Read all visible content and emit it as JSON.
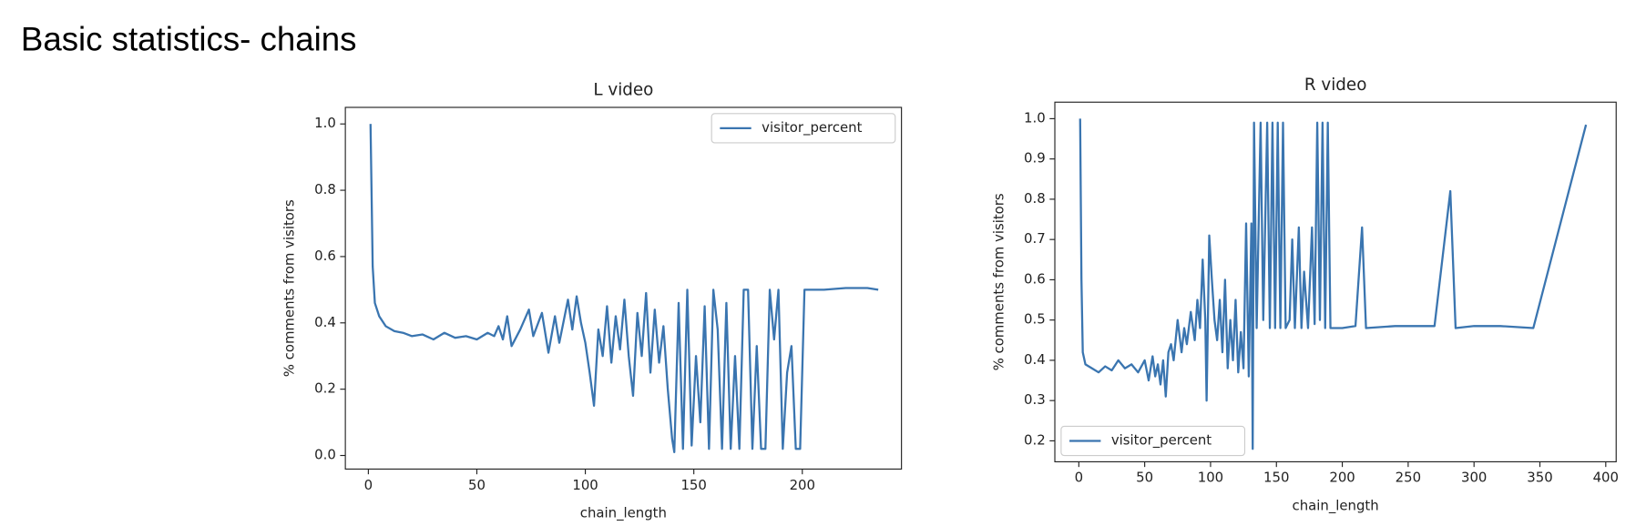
{
  "page_title": "Basic statistics- chains",
  "chart_data": [
    {
      "type": "line",
      "title": "L video",
      "xlabel": "chain_length",
      "ylabel": "% comments from visitors",
      "x": [
        1,
        2,
        3,
        5,
        8,
        12,
        16,
        20,
        25,
        30,
        35,
        40,
        45,
        50,
        55,
        58,
        60,
        62,
        64,
        66,
        70,
        74,
        76,
        80,
        83,
        86,
        88,
        92,
        94,
        96,
        98,
        100,
        102,
        104,
        106,
        108,
        110,
        112,
        114,
        116,
        118,
        120,
        122,
        124,
        126,
        128,
        130,
        132,
        134,
        136,
        138,
        140,
        141,
        143,
        145,
        147,
        149,
        151,
        153,
        155,
        157,
        159,
        161,
        163,
        165,
        167,
        169,
        171,
        173,
        175,
        177,
        179,
        181,
        183,
        185,
        187,
        189,
        191,
        193,
        195,
        197,
        199,
        201,
        205,
        210,
        220,
        230,
        235
      ],
      "series": [
        {
          "name": "visitor_percent",
          "color": "#3a75b0",
          "values": [
            1.0,
            0.57,
            0.46,
            0.42,
            0.39,
            0.375,
            0.37,
            0.36,
            0.365,
            0.35,
            0.37,
            0.355,
            0.36,
            0.35,
            0.37,
            0.36,
            0.39,
            0.35,
            0.42,
            0.33,
            0.38,
            0.44,
            0.36,
            0.43,
            0.31,
            0.42,
            0.34,
            0.47,
            0.38,
            0.48,
            0.4,
            0.34,
            0.25,
            0.15,
            0.38,
            0.3,
            0.45,
            0.28,
            0.42,
            0.32,
            0.47,
            0.3,
            0.18,
            0.43,
            0.3,
            0.49,
            0.25,
            0.44,
            0.28,
            0.39,
            0.2,
            0.05,
            0.01,
            0.46,
            0.02,
            0.5,
            0.03,
            0.3,
            0.1,
            0.45,
            0.02,
            0.5,
            0.38,
            0.02,
            0.46,
            0.02,
            0.3,
            0.02,
            0.5,
            0.5,
            0.02,
            0.33,
            0.02,
            0.02,
            0.5,
            0.35,
            0.5,
            0.02,
            0.25,
            0.33,
            0.02,
            0.02,
            0.5,
            0.5,
            0.5,
            0.505,
            0.505,
            0.5
          ]
        }
      ],
      "xlim": [
        -10.6,
        245.7
      ],
      "ylim": [
        -0.041,
        1.05
      ],
      "xticks": [
        0,
        50,
        100,
        150,
        200
      ],
      "yticks": [
        {
          "value": 0,
          "label": "0.0"
        },
        0.2,
        0.4,
        0.6,
        0.8,
        {
          "value": 1,
          "label": "1.0"
        }
      ],
      "legend": "upper right"
    },
    {
      "type": "line",
      "title": "R video",
      "xlabel": "chain_length",
      "ylabel": "% comments from visitors",
      "x": [
        1,
        2,
        3,
        5,
        10,
        15,
        20,
        25,
        30,
        35,
        40,
        45,
        50,
        53,
        56,
        58,
        60,
        62,
        64,
        66,
        68,
        70,
        72,
        75,
        78,
        80,
        82,
        85,
        88,
        90,
        92,
        94,
        96,
        97,
        99,
        101,
        103,
        105,
        107,
        109,
        111,
        113,
        115,
        117,
        119,
        121,
        123,
        125,
        127,
        129,
        131,
        132,
        133,
        135,
        138,
        140,
        143,
        145,
        147,
        149,
        151,
        153,
        155,
        157,
        160,
        162,
        164,
        167,
        169,
        171,
        174,
        177,
        179,
        181,
        183,
        185,
        187,
        189,
        191,
        200,
        210,
        215,
        218,
        240,
        270,
        282,
        286,
        300,
        320,
        345,
        385
      ],
      "series": [
        {
          "name": "visitor_percent",
          "color": "#3a75b0",
          "values": [
            1.0,
            0.6,
            0.42,
            0.39,
            0.38,
            0.37,
            0.385,
            0.375,
            0.4,
            0.38,
            0.39,
            0.37,
            0.4,
            0.35,
            0.41,
            0.36,
            0.39,
            0.34,
            0.4,
            0.31,
            0.42,
            0.44,
            0.4,
            0.5,
            0.42,
            0.48,
            0.44,
            0.52,
            0.45,
            0.55,
            0.48,
            0.65,
            0.5,
            0.3,
            0.71,
            0.6,
            0.5,
            0.45,
            0.55,
            0.42,
            0.6,
            0.38,
            0.5,
            0.4,
            0.55,
            0.37,
            0.47,
            0.38,
            0.74,
            0.36,
            0.74,
            0.18,
            0.99,
            0.48,
            0.99,
            0.5,
            0.99,
            0.48,
            0.99,
            0.48,
            0.99,
            0.48,
            0.99,
            0.48,
            0.5,
            0.7,
            0.48,
            0.73,
            0.48,
            0.62,
            0.48,
            0.73,
            0.49,
            0.99,
            0.5,
            0.99,
            0.48,
            0.99,
            0.48,
            0.48,
            0.485,
            0.73,
            0.48,
            0.485,
            0.485,
            0.82,
            0.48,
            0.485,
            0.485,
            0.48,
            0.985
          ]
        }
      ],
      "xlim": [
        -18.2,
        407.9
      ],
      "ylim": [
        0.148,
        1.041
      ],
      "xticks": [
        0,
        50,
        100,
        150,
        200,
        250,
        300,
        350,
        400
      ],
      "yticks": [
        0.2,
        0.3,
        0.4,
        0.5,
        0.6,
        0.7,
        0.8,
        0.9,
        {
          "value": 1,
          "label": "1.0"
        }
      ],
      "legend": "lower left"
    }
  ]
}
